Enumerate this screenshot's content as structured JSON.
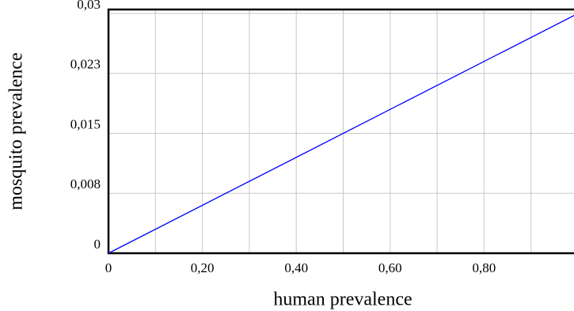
{
  "chart_data": {
    "type": "line",
    "x_label": "human prevalence",
    "y_label": "mosquito prevalence",
    "x": [
      0,
      1
    ],
    "series": [
      {
        "name": "mosquito prevalence",
        "color": "#0000ff",
        "values": [
          0,
          0.03
        ]
      }
    ],
    "xlim": [
      0,
      1
    ],
    "xticks": [
      0,
      {
        "value": 0.2,
        "label": "0,20"
      },
      {
        "value": 0.4,
        "label": "0,40"
      },
      {
        "value": 0.6,
        "label": "0,60"
      },
      {
        "value": 0.8,
        "label": "0,80"
      },
      1
    ],
    "x_grid": [
      0.1,
      0.3,
      0.5,
      0.7,
      0.9
    ],
    "ylim": [
      0,
      0.0305
    ],
    "yticks": [
      0,
      {
        "value": 0.0075,
        "label": "0,008"
      },
      {
        "value": 0.015,
        "label": "0,015"
      },
      {
        "value": 0.0225,
        "label": "0,023"
      },
      {
        "value": 0.03,
        "label": "0,03"
      }
    ],
    "grid": true
  }
}
